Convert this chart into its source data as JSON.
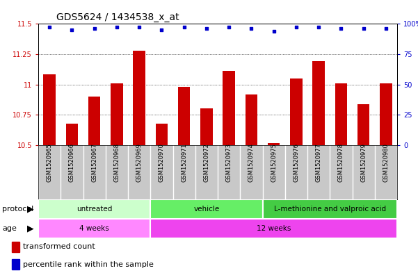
{
  "title": "GDS5624 / 1434538_x_at",
  "samples": [
    "GSM1520965",
    "GSM1520966",
    "GSM1520967",
    "GSM1520968",
    "GSM1520969",
    "GSM1520970",
    "GSM1520971",
    "GSM1520972",
    "GSM1520973",
    "GSM1520974",
    "GSM1520975",
    "GSM1520976",
    "GSM1520977",
    "GSM1520978",
    "GSM1520979",
    "GSM1520980"
  ],
  "transformed_count": [
    11.08,
    10.68,
    10.9,
    11.01,
    11.28,
    10.68,
    10.98,
    10.8,
    11.11,
    10.92,
    10.52,
    11.05,
    11.19,
    11.01,
    10.84,
    11.01
  ],
  "percentile_rank": [
    97,
    95,
    96,
    97,
    97,
    95,
    97,
    96,
    97,
    96,
    94,
    97,
    97,
    96,
    96,
    96
  ],
  "ylim_left": [
    10.5,
    11.5
  ],
  "ylim_right": [
    0,
    100
  ],
  "yticks_left": [
    10.5,
    10.75,
    11.0,
    11.25,
    11.5
  ],
  "yticks_right": [
    0,
    25,
    50,
    75,
    100
  ],
  "ytick_labels_left": [
    "10.5",
    "10.75",
    "11",
    "11.25",
    "11.5"
  ],
  "ytick_labels_right": [
    "0",
    "25",
    "50",
    "75",
    "100%"
  ],
  "bar_color": "#cc0000",
  "dot_color": "#0000cc",
  "grid_lines": [
    10.75,
    11.0,
    11.25
  ],
  "proto_colors": [
    "#ccffcc",
    "#66ee66",
    "#44cc44"
  ],
  "proto_labels": [
    "untreated",
    "vehicle",
    "L-methionine and valproic acid"
  ],
  "proto_ranges": [
    [
      0,
      5
    ],
    [
      5,
      10
    ],
    [
      10,
      16
    ]
  ],
  "age_colors": [
    "#ff88ff",
    "#ee44ee"
  ],
  "age_labels": [
    "4 weeks",
    "12 weeks"
  ],
  "age_ranges": [
    [
      0,
      5
    ],
    [
      5,
      16
    ]
  ],
  "sample_bg_color": "#c8c8c8",
  "legend_bar_color": "#cc0000",
  "legend_dot_color": "#0000cc"
}
